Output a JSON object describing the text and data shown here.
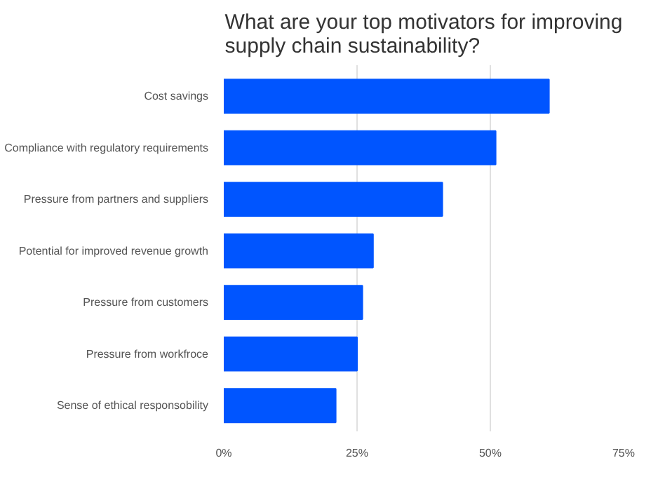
{
  "chart_data": {
    "type": "bar",
    "orientation": "horizontal",
    "title": "What are your top motivators for improving supply chain sustainability?",
    "categories": [
      "Cost savings",
      "Compliance with regulatory requirements",
      "Pressure from partners and suppliers",
      "Potential for improved revenue growth",
      "Pressure from customers",
      "Pressure from workfroce",
      "Sense of ethical responsobility"
    ],
    "values": [
      61,
      51,
      41,
      28,
      26,
      25,
      21
    ],
    "color": "#0055ff",
    "xlim": [
      0,
      75
    ],
    "xticks": [
      {
        "value": 0,
        "label": "0%"
      },
      {
        "value": 25,
        "label": "25%"
      },
      {
        "value": 50,
        "label": "50%"
      },
      {
        "value": 75,
        "label": "75%"
      }
    ],
    "grid": "x"
  }
}
